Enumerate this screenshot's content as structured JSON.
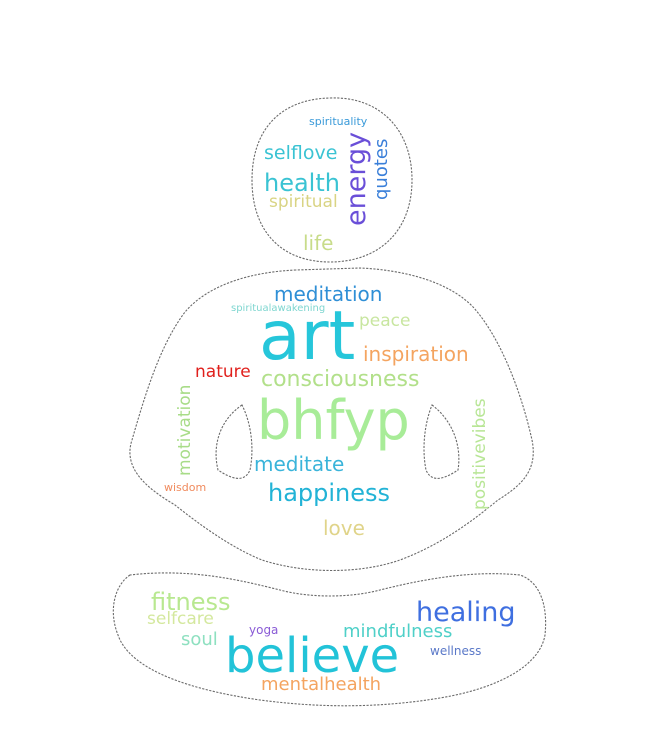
{
  "words": [
    {
      "id": "spirituality",
      "text": "spirituality",
      "color": "#3a9ad9"
    },
    {
      "id": "selflove",
      "text": "selflove",
      "color": "#3ac3d3"
    },
    {
      "id": "health",
      "text": "health",
      "color": "#3ac3d3"
    },
    {
      "id": "energy",
      "text": "energy",
      "color": "#6a4fd8"
    },
    {
      "id": "quotes",
      "text": "quotes",
      "color": "#3a7fd9"
    },
    {
      "id": "spiritual",
      "text": "spiritual",
      "color": "#d9d484"
    },
    {
      "id": "life",
      "text": "life",
      "color": "#c8dc8a"
    },
    {
      "id": "meditation",
      "text": "meditation",
      "color": "#2f8fd6"
    },
    {
      "id": "spiritualawakening",
      "text": "spiritualawakening",
      "color": "#7ed6d0"
    },
    {
      "id": "art",
      "text": "art",
      "color": "#26c6da"
    },
    {
      "id": "peace",
      "text": "peace",
      "color": "#c8e6a0"
    },
    {
      "id": "inspiration",
      "text": "inspiration",
      "color": "#f4a460"
    },
    {
      "id": "nature",
      "text": "nature",
      "color": "#e0201c"
    },
    {
      "id": "consciousness",
      "text": "consciousness",
      "color": "#b2e08a"
    },
    {
      "id": "motivation",
      "text": "motivation",
      "color": "#a8dc88"
    },
    {
      "id": "bhfyp",
      "text": "bhfyp",
      "color": "#a8ec98"
    },
    {
      "id": "positivevibes",
      "text": "positivevibes",
      "color": "#b8e696"
    },
    {
      "id": "meditate",
      "text": "meditate",
      "color": "#3ab4da"
    },
    {
      "id": "wisdom",
      "text": "wisdom",
      "color": "#f08a5d"
    },
    {
      "id": "happiness",
      "text": "happiness",
      "color": "#22b3d6"
    },
    {
      "id": "love",
      "text": "love",
      "color": "#e0d48a"
    },
    {
      "id": "fitness",
      "text": "fitness",
      "color": "#b8e890"
    },
    {
      "id": "healing",
      "text": "healing",
      "color": "#3f6fe0"
    },
    {
      "id": "selfcare",
      "text": "selfcare",
      "color": "#d4e89e"
    },
    {
      "id": "yoga",
      "text": "yoga",
      "color": "#8a5bd6"
    },
    {
      "id": "mindfulness",
      "text": "mindfulness",
      "color": "#4fd0c8"
    },
    {
      "id": "soul",
      "text": "soul",
      "color": "#8ee0c0"
    },
    {
      "id": "believe",
      "text": "believe",
      "color": "#22c3d8"
    },
    {
      "id": "wellness",
      "text": "wellness",
      "color": "#5a78c8"
    },
    {
      "id": "mentalhealth",
      "text": "mentalhealth",
      "color": "#f4a460"
    }
  ]
}
